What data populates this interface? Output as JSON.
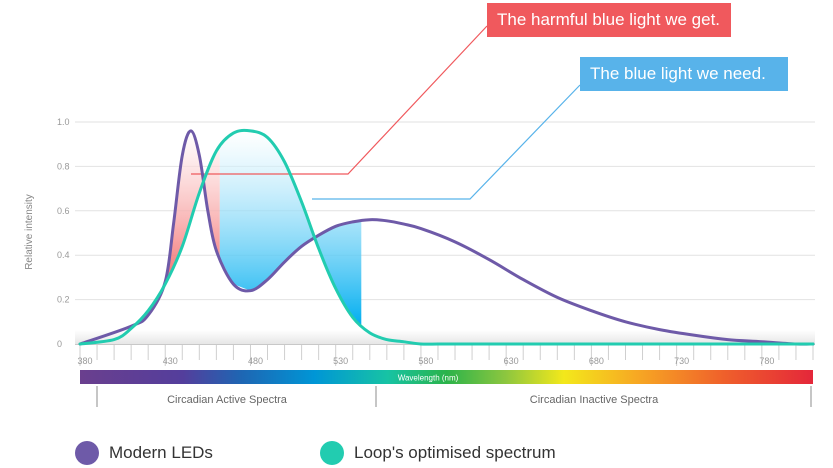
{
  "colors": {
    "led": "#6e5aa8",
    "loop": "#22ccb0",
    "harmful": "#f0595d",
    "need": "#58b3ea"
  },
  "callouts": {
    "harmful": "The harmful blue light we get.",
    "need": "The blue light we need."
  },
  "legend": {
    "led": "Modern LEDs",
    "loop": "Loop's optimised spectrum"
  },
  "chart_data": {
    "type": "line",
    "ylabel": "Relative intensity",
    "xlabel": "Wavelength (nm)",
    "xlim": [
      380,
      810
    ],
    "ylim": [
      0,
      1.0
    ],
    "x_ticks": [
      380,
      430,
      480,
      530,
      580,
      630,
      680,
      730,
      780
    ],
    "y_ticks": [
      {
        "value": 0,
        "label": "0"
      },
      {
        "value": 0.2,
        "label": "0.2"
      },
      {
        "value": 0.4,
        "label": "0.4"
      },
      {
        "value": 0.6,
        "label": "0.6"
      },
      {
        "value": 0.8,
        "label": "0.8"
      },
      {
        "value": 1.0,
        "label": "1.0"
      }
    ],
    "grid": true,
    "regions": [
      {
        "label": "Circadian Active Spectra",
        "from": 390,
        "to": 555
      },
      {
        "label": "Circadian Inactive Spectra",
        "from": 555,
        "to": 810
      }
    ],
    "series": [
      {
        "name": "Modern LEDs",
        "x": [
          380,
          410,
          420,
          430,
          435,
          440,
          445,
          450,
          455,
          460,
          470,
          480,
          490,
          500,
          510,
          520,
          530,
          540,
          550,
          560,
          570,
          580,
          600,
          620,
          640,
          660,
          680,
          700,
          720,
          740,
          760,
          780,
          800,
          810
        ],
        "y": [
          0.0,
          0.08,
          0.13,
          0.28,
          0.55,
          0.85,
          0.96,
          0.85,
          0.6,
          0.42,
          0.27,
          0.24,
          0.29,
          0.37,
          0.44,
          0.49,
          0.53,
          0.55,
          0.56,
          0.555,
          0.54,
          0.52,
          0.46,
          0.38,
          0.29,
          0.21,
          0.15,
          0.1,
          0.065,
          0.04,
          0.02,
          0.01,
          0.0,
          0.0
        ]
      },
      {
        "name": "Loop's optimised spectrum",
        "x": [
          380,
          400,
          410,
          420,
          430,
          440,
          450,
          460,
          470,
          480,
          490,
          500,
          510,
          520,
          530,
          540,
          550,
          560,
          570,
          580,
          590,
          600,
          620,
          640,
          680,
          810
        ],
        "y": [
          0.0,
          0.02,
          0.07,
          0.15,
          0.27,
          0.44,
          0.68,
          0.87,
          0.95,
          0.96,
          0.93,
          0.82,
          0.64,
          0.43,
          0.25,
          0.12,
          0.05,
          0.02,
          0.01,
          0.0,
          0.0,
          0.0,
          0.0,
          0.0,
          0.0,
          0.0
        ]
      }
    ]
  }
}
